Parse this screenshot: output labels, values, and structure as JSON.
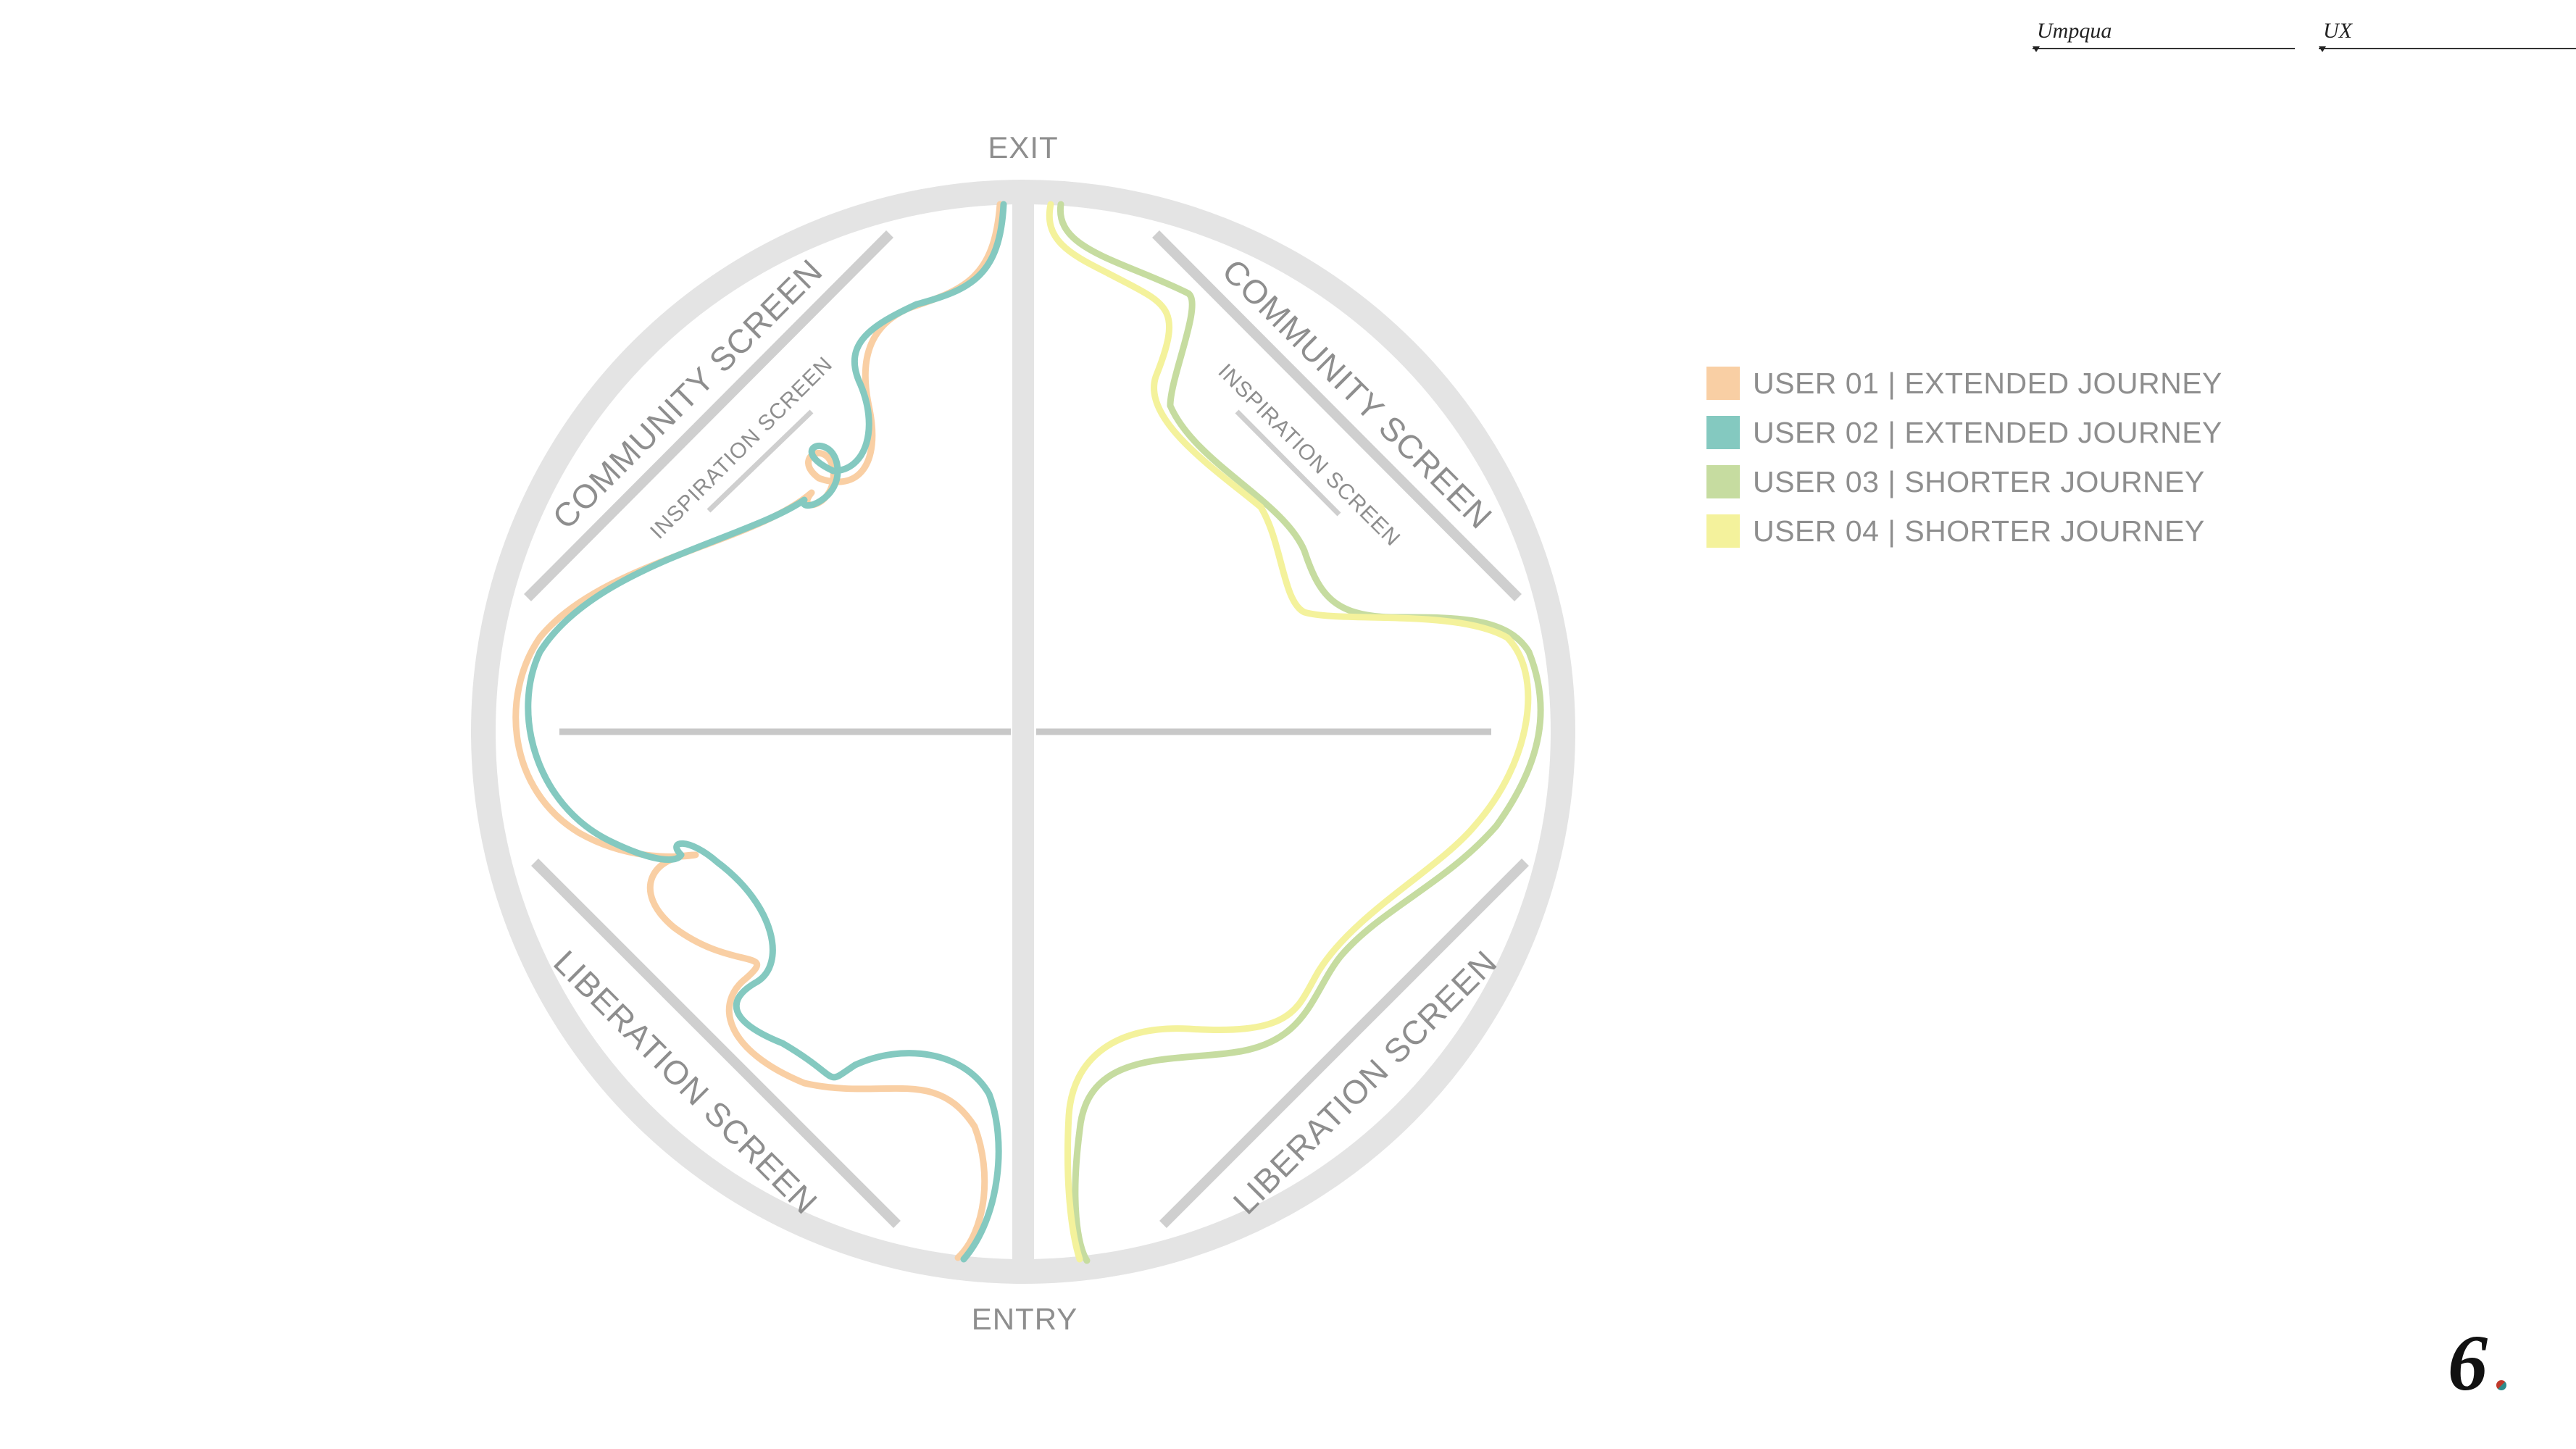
{
  "header": {
    "project": "Umpqua",
    "discipline": "UX"
  },
  "diagram": {
    "exit_label": "EXIT",
    "entry_label": "ENTRY",
    "community_left": "COMMUNITY SCREEN",
    "community_right": "COMMUNITY SCREEN",
    "inspiration_left": "INSPIRATION SCREEN",
    "inspiration_right": "INSPIRATION SCREEN",
    "liberation_left": "LIBERATION SCREEN",
    "liberation_right": "LIBERATION SCREEN"
  },
  "legend": [
    {
      "label": "USER 01 | EXTENDED JOURNEY",
      "color": "#f9cfa4"
    },
    {
      "label": "USER 02 | EXTENDED JOURNEY",
      "color": "#84c9c0"
    },
    {
      "label": "USER 03 | SHORTER JOURNEY",
      "color": "#c6dca0"
    },
    {
      "label": "USER 04 | SHORTER JOURNEY",
      "color": "#f4f29c"
    }
  ],
  "page_number": "6"
}
